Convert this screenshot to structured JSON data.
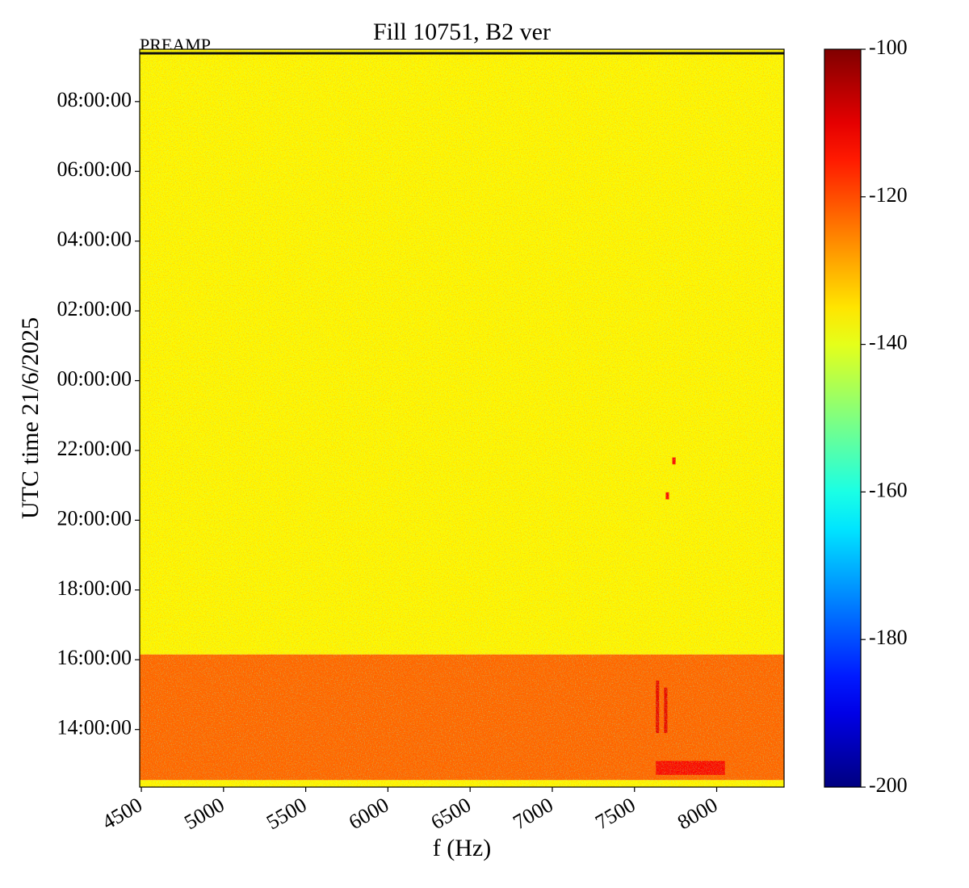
{
  "chart_data": {
    "type": "heatmap",
    "title": "Fill 10751, B2 ver",
    "annotation": "PREAMP",
    "xlabel": "f (Hz)",
    "ylabel": "UTC time 21/6/2025",
    "xlim": [
      4490,
      8410
    ],
    "xticks": [
      4500,
      5000,
      5500,
      6000,
      6500,
      7000,
      7500,
      8000
    ],
    "ylim": [
      12.35,
      33.5
    ],
    "yticks": [
      {
        "value": 14,
        "label": "14:00:00"
      },
      {
        "value": 16,
        "label": "16:00:00"
      },
      {
        "value": 18,
        "label": "18:00:00"
      },
      {
        "value": 20,
        "label": "20:00:00"
      },
      {
        "value": 22,
        "label": "22:00:00"
      },
      {
        "value": 24,
        "label": "00:00:00"
      },
      {
        "value": 26,
        "label": "02:00:00"
      },
      {
        "value": 28,
        "label": "04:00:00"
      },
      {
        "value": 30,
        "label": "06:00:00"
      },
      {
        "value": 32,
        "label": "08:00:00"
      }
    ],
    "colormap": "jet",
    "clim": [
      -200,
      -100
    ],
    "cticks": [
      -100,
      -120,
      -140,
      -160,
      -180,
      -200
    ],
    "regions": [
      {
        "x": [
          4490,
          8410
        ],
        "y": [
          16.15,
          33.5
        ],
        "value": -137
      },
      {
        "x": [
          4490,
          8410
        ],
        "y": [
          12.55,
          16.15
        ],
        "value": -122
      },
      {
        "x": [
          4490,
          8410
        ],
        "y": [
          12.35,
          12.55
        ],
        "value": -137
      },
      {
        "x": [
          7630,
          7650
        ],
        "y": [
          13.9,
          15.4
        ],
        "value": -110
      },
      {
        "x": [
          7680,
          7700
        ],
        "y": [
          13.9,
          15.2
        ],
        "value": -110
      },
      {
        "x": [
          7630,
          8050
        ],
        "y": [
          12.7,
          13.1
        ],
        "value": -112
      },
      {
        "x": [
          7730,
          7750
        ],
        "y": [
          21.6,
          21.8
        ],
        "value": -112
      },
      {
        "x": [
          7690,
          7710
        ],
        "y": [
          20.6,
          20.8
        ],
        "value": -112
      }
    ]
  }
}
